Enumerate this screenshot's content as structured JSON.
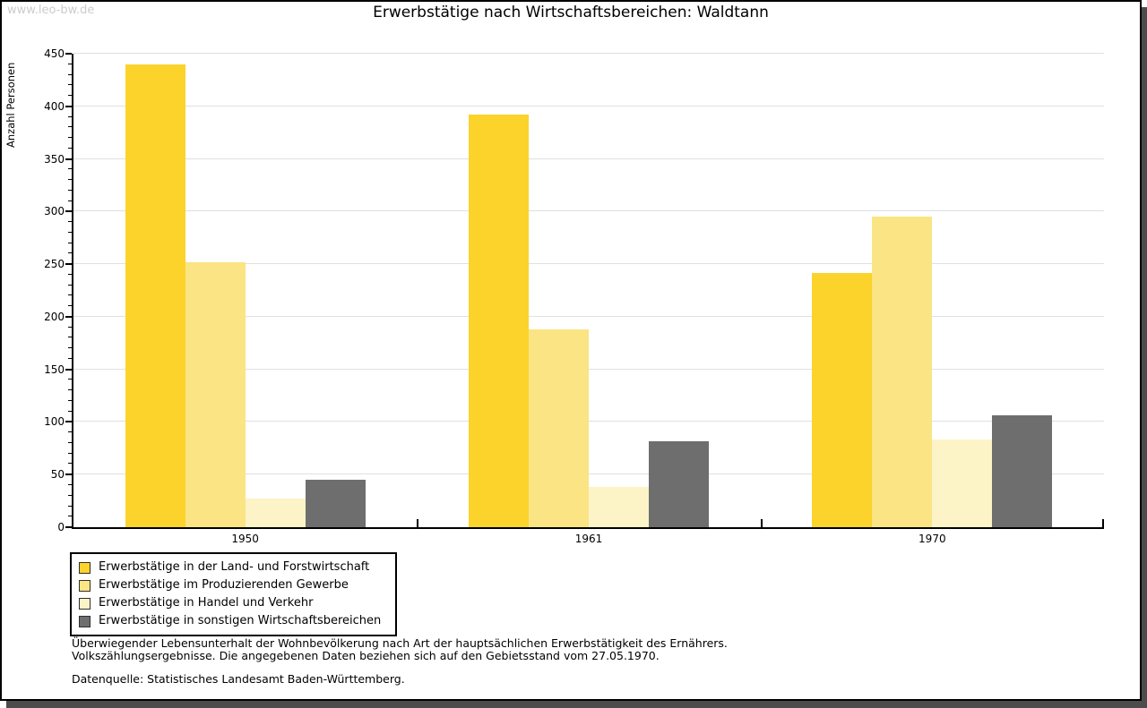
{
  "page": {
    "watermark": "www.leo-bw.de"
  },
  "chart_data": {
    "type": "bar",
    "title": "Erwerbstätige nach Wirtschaftsbereichen: Waldtann",
    "ylabel": "Anzahl Personen",
    "xlabel": "",
    "categories": [
      "1950",
      "1961",
      "1970"
    ],
    "series": [
      {
        "name": "Erwerbstätige in der Land- und Forstwirtschaft",
        "color": "#fbd32b",
        "values": [
          440,
          392,
          242
        ]
      },
      {
        "name": "Erwerbstätige im Produzierenden Gewerbe",
        "color": "#fae484",
        "values": [
          252,
          188,
          295
        ]
      },
      {
        "name": "Erwerbstätige in Handel und Verkehr",
        "color": "#fcf3c7",
        "values": [
          27,
          38,
          83
        ]
      },
      {
        "name": "Erwerbstätige in sonstigen Wirtschaftsbereichen",
        "color": "#6e6e6e",
        "values": [
          45,
          82,
          106
        ]
      }
    ],
    "ylim": [
      0,
      450
    ],
    "ytick_major_step": 50,
    "ytick_minor_step": 10,
    "grid": true,
    "legend_position": "bottom-left",
    "axis_color": "#000000",
    "gridline_color": "#e0e0e0"
  },
  "footer": {
    "note_line1": "Überwiegender Lebensunterhalt der Wohnbevölkerung nach Art der hauptsächlichen Erwerbstätigkeit des Ernährers.",
    "note_line2": "Volkszählungsergebnisse. Die angegebenen Daten beziehen sich auf den Gebietsstand vom 27.05.1970.",
    "source": "Datenquelle: Statistisches Landesamt Baden-Württemberg."
  }
}
